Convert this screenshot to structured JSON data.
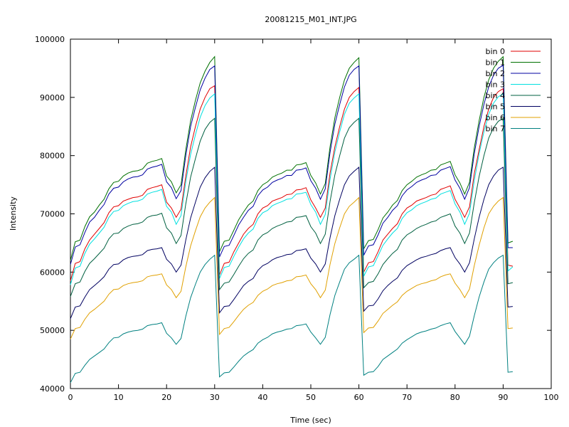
{
  "chart_data": {
    "type": "line",
    "title": "20081215_M01_INT.JPG",
    "xlabel": "Time (sec)",
    "ylabel": "Intensity",
    "xlim": [
      0,
      100
    ],
    "ylim": [
      40000,
      100000
    ],
    "xticks": [
      0,
      10,
      20,
      30,
      40,
      50,
      60,
      70,
      80,
      90,
      100
    ],
    "yticks": [
      40000,
      50000,
      60000,
      70000,
      80000,
      90000,
      100000
    ],
    "grid": false,
    "legend_position": "top-right",
    "x": [
      0,
      1,
      2,
      3,
      4,
      5,
      6,
      7,
      8,
      9,
      10,
      11,
      12,
      13,
      14,
      15,
      16,
      17,
      18,
      19,
      20,
      21,
      22,
      23,
      24,
      25,
      26,
      27,
      28,
      29,
      30,
      31,
      32,
      33,
      34,
      35,
      36,
      37,
      38,
      39,
      40,
      41,
      42,
      43,
      44,
      45,
      46,
      47,
      48,
      49,
      50,
      51,
      52,
      53,
      54,
      55,
      56,
      57,
      58,
      59,
      60,
      61,
      62,
      63,
      64,
      65,
      66,
      67,
      68,
      69,
      70,
      71,
      72,
      73,
      74,
      75,
      76,
      77,
      78,
      79,
      80,
      81,
      82,
      83,
      84,
      85,
      86,
      87,
      88,
      89,
      90,
      91,
      92
    ],
    "series": [
      {
        "name": "bin 0",
        "color": "#e00000",
        "values": [
          58500,
          61500,
          61800,
          64000,
          65500,
          66500,
          67500,
          68500,
          70200,
          71200,
          71400,
          72200,
          72500,
          72800,
          72900,
          73200,
          74200,
          74500,
          74700,
          75000,
          72000,
          71000,
          69400,
          70800,
          76500,
          81500,
          85000,
          88000,
          90000,
          91500,
          92000,
          59500,
          61500,
          61700,
          63500,
          65000,
          66500,
          67500,
          68200,
          70000,
          71000,
          71400,
          72200,
          72500,
          72800,
          73300,
          73400,
          74100,
          74200,
          74500,
          72400,
          71000,
          69400,
          71000,
          77000,
          81500,
          85000,
          88000,
          90000,
          91000,
          91700,
          60000,
          61600,
          61800,
          63500,
          65500,
          66500,
          67500,
          68300,
          70000,
          71000,
          71500,
          72200,
          72500,
          72800,
          73200,
          73400,
          74200,
          74500,
          74800,
          72500,
          71000,
          69400,
          71200,
          76900,
          81000,
          85000,
          88000,
          90000,
          91000,
          91500,
          61200,
          61000
        ]
      },
      {
        "name": "bin 1",
        "color": "#007000",
        "values": [
          62000,
          65200,
          65500,
          67800,
          69500,
          70300,
          71500,
          72500,
          74300,
          75400,
          75600,
          76500,
          77000,
          77300,
          77400,
          77700,
          78700,
          79000,
          79200,
          79500,
          76500,
          75500,
          73600,
          75000,
          81000,
          86000,
          89500,
          92500,
          94500,
          96000,
          97000,
          63500,
          65300,
          65500,
          67200,
          69000,
          70300,
          71500,
          72200,
          74000,
          75000,
          75500,
          76300,
          76700,
          77000,
          77500,
          77500,
          78400,
          78500,
          78800,
          76600,
          75300,
          73400,
          75200,
          81500,
          86500,
          90000,
          93000,
          95000,
          96000,
          96800,
          64000,
          65400,
          65600,
          67300,
          69300,
          70300,
          71500,
          72300,
          74000,
          75000,
          75600,
          76300,
          76700,
          77000,
          77500,
          77600,
          78400,
          78700,
          79000,
          76700,
          75300,
          73400,
          75400,
          81300,
          86000,
          90000,
          93000,
          95000,
          96200,
          97000,
          65000,
          65300
        ]
      },
      {
        "name": "bin 2",
        "color": "#0000a0",
        "values": [
          61300,
          64300,
          64700,
          66800,
          68600,
          69400,
          70600,
          71600,
          73400,
          74400,
          74600,
          75500,
          76000,
          76300,
          76400,
          76700,
          77700,
          78000,
          78200,
          78500,
          75500,
          74500,
          72600,
          74000,
          80000,
          85000,
          88300,
          91300,
          93300,
          94800,
          95400,
          62600,
          64400,
          64600,
          66300,
          68100,
          69400,
          70600,
          71300,
          73100,
          74100,
          74600,
          75400,
          75800,
          76100,
          76600,
          76600,
          77500,
          77600,
          77900,
          75700,
          74400,
          72500,
          74300,
          80500,
          85400,
          88800,
          91800,
          93800,
          94800,
          95400,
          62900,
          64500,
          64700,
          66400,
          68400,
          69400,
          70600,
          71400,
          73100,
          74100,
          74700,
          75400,
          75800,
          76100,
          76600,
          76700,
          77500,
          77800,
          78100,
          75800,
          74400,
          72500,
          74500,
          80300,
          85000,
          88800,
          91800,
          93800,
          95000,
          95500,
          64200,
          64200
        ]
      },
      {
        "name": "bin 3",
        "color": "#00e0e0",
        "values": [
          57800,
          60700,
          61000,
          63200,
          64800,
          65700,
          66700,
          67700,
          69400,
          70400,
          70600,
          71400,
          71800,
          72100,
          72200,
          72500,
          73400,
          73700,
          73900,
          74200,
          71300,
          70300,
          68200,
          69700,
          75500,
          80200,
          83600,
          86600,
          88600,
          89900,
          90600,
          58900,
          60800,
          61000,
          62700,
          64300,
          65700,
          66700,
          67400,
          69200,
          70200,
          70600,
          71400,
          71800,
          72100,
          72500,
          72600,
          73400,
          73500,
          73700,
          71600,
          70300,
          68200,
          69900,
          75900,
          80600,
          84100,
          87100,
          89000,
          89900,
          90600,
          59300,
          60900,
          61100,
          62800,
          64600,
          65700,
          66700,
          67500,
          69200,
          70200,
          70700,
          71400,
          71800,
          72100,
          72500,
          72700,
          73400,
          73700,
          74000,
          71700,
          70300,
          68200,
          70100,
          75700,
          80300,
          84100,
          87100,
          89000,
          90100,
          90600,
          60200,
          60900
        ]
      },
      {
        "name": "bin 4",
        "color": "#006040",
        "values": [
          55800,
          58000,
          58300,
          60100,
          61500,
          62300,
          63200,
          64100,
          65700,
          66600,
          66700,
          67500,
          67900,
          68200,
          68300,
          68600,
          69400,
          69700,
          69800,
          70100,
          67600,
          66700,
          64900,
          66300,
          71700,
          76300,
          79500,
          82500,
          84500,
          85700,
          86400,
          57000,
          58100,
          58300,
          59600,
          61000,
          62300,
          63200,
          63800,
          65500,
          66400,
          66800,
          67500,
          67900,
          68200,
          68600,
          68700,
          69400,
          69500,
          69700,
          67800,
          66700,
          64900,
          66500,
          72100,
          76700,
          80000,
          83000,
          84800,
          85700,
          86400,
          57300,
          58200,
          58400,
          59700,
          61300,
          62300,
          63200,
          63900,
          65500,
          66400,
          66900,
          67500,
          67900,
          68200,
          68600,
          68800,
          69400,
          69700,
          70000,
          67900,
          66700,
          64900,
          66700,
          71900,
          76400,
          80000,
          83000,
          84800,
          85900,
          86400,
          58000,
          58200
        ]
      },
      {
        "name": "bin 5",
        "color": "#000060",
        "values": [
          52000,
          54000,
          54200,
          55700,
          57000,
          57700,
          58400,
          59200,
          60500,
          61300,
          61400,
          62100,
          62500,
          62700,
          62800,
          63000,
          63700,
          63900,
          64000,
          64200,
          62200,
          61400,
          60000,
          61200,
          65500,
          69300,
          72000,
          74600,
          76200,
          77300,
          78000,
          53000,
          54100,
          54200,
          55300,
          56500,
          57700,
          58400,
          58900,
          60300,
          61100,
          61500,
          62100,
          62500,
          62700,
          63000,
          63100,
          63700,
          63800,
          64000,
          62400,
          61400,
          60000,
          61400,
          65900,
          69700,
          72500,
          75000,
          76500,
          77300,
          78000,
          53300,
          54200,
          54300,
          55400,
          56800,
          57700,
          58400,
          59000,
          60300,
          61100,
          61600,
          62100,
          62500,
          62700,
          63000,
          63200,
          63700,
          64000,
          64200,
          62500,
          61400,
          60000,
          61600,
          65700,
          69400,
          72500,
          75000,
          76500,
          77500,
          78000,
          54000,
          54100
        ]
      },
      {
        "name": "bin 6",
        "color": "#e0a000",
        "values": [
          48500,
          50300,
          50500,
          51900,
          53000,
          53600,
          54300,
          55000,
          56200,
          57000,
          57100,
          57700,
          58000,
          58200,
          58300,
          58500,
          59200,
          59400,
          59500,
          59700,
          57800,
          57000,
          55600,
          56700,
          60900,
          64500,
          67100,
          69500,
          71000,
          72000,
          72800,
          49300,
          50300,
          50500,
          51500,
          52600,
          53600,
          54300,
          54800,
          56000,
          56700,
          57100,
          57700,
          58000,
          58200,
          58500,
          58600,
          59200,
          59300,
          59500,
          58000,
          57000,
          55600,
          56900,
          61300,
          64900,
          67600,
          70000,
          71300,
          72000,
          72800,
          49600,
          50400,
          50500,
          51600,
          52900,
          53600,
          54300,
          54900,
          56000,
          56700,
          57200,
          57700,
          58000,
          58200,
          58500,
          58700,
          59200,
          59500,
          59700,
          58100,
          57000,
          55600,
          57100,
          61100,
          64600,
          67600,
          70000,
          71300,
          72200,
          72800,
          50300,
          50400
        ]
      },
      {
        "name": "bin 7",
        "color": "#008080",
        "values": [
          41000,
          42600,
          42800,
          44000,
          45000,
          45600,
          46200,
          46800,
          47900,
          48700,
          48800,
          49400,
          49700,
          49900,
          50000,
          50200,
          50800,
          51000,
          51100,
          51300,
          49500,
          48700,
          47600,
          48600,
          52400,
          55600,
          57900,
          60000,
          61300,
          62200,
          62900,
          42000,
          42700,
          42800,
          43700,
          44700,
          45600,
          46200,
          46700,
          47800,
          48400,
          48800,
          49400,
          49700,
          49900,
          50200,
          50300,
          50800,
          50900,
          51100,
          49700,
          48700,
          47600,
          48800,
          52700,
          56000,
          58300,
          60500,
          61600,
          62200,
          62900,
          42300,
          42800,
          42900,
          43800,
          45000,
          45600,
          46200,
          46800,
          47800,
          48400,
          48900,
          49400,
          49700,
          49900,
          50200,
          50400,
          50800,
          51100,
          51300,
          49800,
          48700,
          47600,
          49000,
          52500,
          55700,
          58300,
          60500,
          61600,
          62400,
          62900,
          42800,
          42900
        ]
      }
    ]
  }
}
